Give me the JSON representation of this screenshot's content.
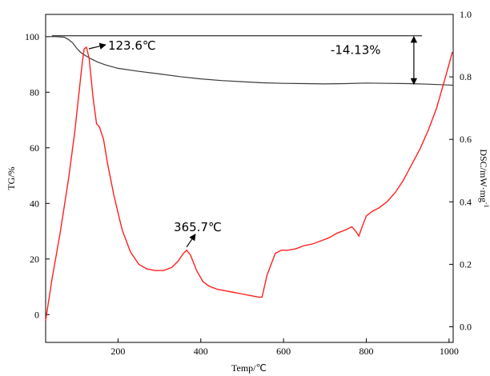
{
  "chart_data": {
    "type": "line",
    "xlabel": "Temp/℃",
    "ylabel_left": "TG/%",
    "ylabel_right_text": "DSC/mW·mg",
    "ylabel_right_sup": "-1",
    "xlim": [
      25,
      1010
    ],
    "ylim_left": [
      -10,
      108
    ],
    "ylim_right": [
      -0.05,
      1.0
    ],
    "x_ticks": [
      200,
      400,
      600,
      800,
      1000
    ],
    "x_tick_labels": [
      "200",
      "400",
      "600",
      "800",
      "1000"
    ],
    "y_left_ticks": [
      0,
      20,
      40,
      60,
      80,
      100
    ],
    "y_left_tick_labels": [
      "0",
      "20",
      "40",
      "60",
      "80",
      "100"
    ],
    "y_right_ticks": [
      0.0,
      0.2,
      0.4,
      0.6,
      0.8,
      1.0
    ],
    "y_right_tick_labels": [
      "0.0",
      "0.2",
      "0.4",
      "0.6",
      "0.8",
      "1.0"
    ],
    "grid": false,
    "series": [
      {
        "axis": "left",
        "color": "#3a3a3a",
        "x": [
          25,
          50,
          70,
          80,
          90,
          100,
          110,
          120,
          135,
          150,
          170,
          200,
          250,
          300,
          350,
          400,
          450,
          500,
          550,
          600,
          650,
          700,
          750,
          800,
          850,
          900,
          950,
          1000,
          1010
        ],
        "y": [
          100.0,
          100.0,
          99.8,
          99.0,
          97.8,
          95.8,
          94.3,
          93.3,
          92.0,
          90.9,
          89.8,
          88.6,
          87.5,
          86.6,
          85.6,
          84.8,
          84.2,
          83.8,
          83.4,
          83.2,
          83.1,
          83.0,
          83.1,
          83.3,
          83.2,
          83.1,
          82.9,
          82.6,
          82.5
        ]
      },
      {
        "axis": "right",
        "color": "#ff2020",
        "x": [
          25,
          40,
          60,
          80,
          95,
          105,
          113,
          118,
          123.6,
          130,
          140,
          148,
          155,
          165,
          175,
          190,
          210,
          230,
          250,
          270,
          290,
          310,
          330,
          345,
          358,
          365.7,
          375,
          390,
          405,
          420,
          440,
          460,
          480,
          500,
          520,
          540,
          548,
          560,
          580,
          595,
          610,
          630,
          650,
          670,
          690,
          710,
          730,
          750,
          765,
          775,
          782,
          790,
          800,
          815,
          830,
          850,
          870,
          890,
          910,
          930,
          950,
          970,
          985,
          1000,
          1008
        ],
        "y": [
          0.02,
          0.15,
          0.3,
          0.47,
          0.62,
          0.74,
          0.84,
          0.89,
          0.895,
          0.86,
          0.73,
          0.65,
          0.64,
          0.6,
          0.52,
          0.42,
          0.31,
          0.24,
          0.2,
          0.185,
          0.18,
          0.18,
          0.19,
          0.21,
          0.235,
          0.245,
          0.23,
          0.18,
          0.145,
          0.13,
          0.12,
          0.115,
          0.11,
          0.105,
          0.1,
          0.095,
          0.095,
          0.165,
          0.235,
          0.245,
          0.245,
          0.25,
          0.26,
          0.265,
          0.275,
          0.285,
          0.3,
          0.31,
          0.32,
          0.305,
          0.29,
          0.32,
          0.355,
          0.37,
          0.38,
          0.4,
          0.43,
          0.47,
          0.52,
          0.57,
          0.63,
          0.7,
          0.77,
          0.84,
          0.88
        ]
      }
    ],
    "annotations": [
      {
        "text": "123.6℃"
      },
      {
        "text": "365.7℃"
      },
      {
        "text": "-14.13%"
      }
    ],
    "mass_loss_bracket": {
      "x": 915,
      "y_start": 100.3,
      "y_end": 82.6
    }
  }
}
